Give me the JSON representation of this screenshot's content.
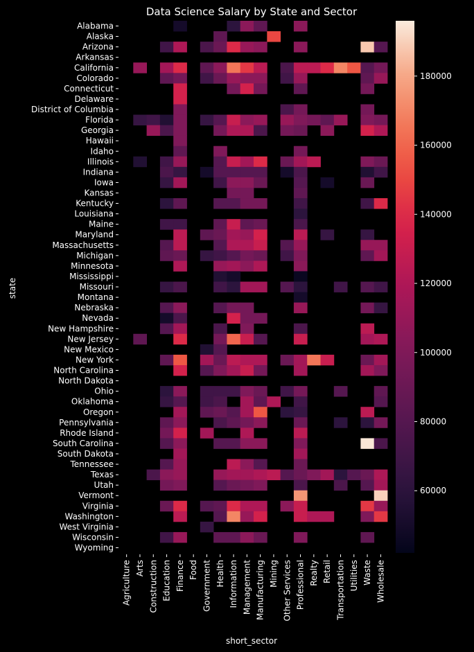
{
  "chart_data": {
    "type": "heatmap",
    "title": "Data Science Salary by State and Sector",
    "xlabel": "short_sector",
    "ylabel": "state",
    "x": [
      "Agriculture",
      "Arts",
      "Construction",
      "Education",
      "Finance",
      "Food",
      "Government",
      "Health",
      "Information",
      "Management",
      "Manufacturing",
      "Mining",
      "Other Services",
      "Professional",
      "Realty",
      "Retail",
      "Transportation",
      "Utilities",
      "Waste",
      "Wholesale"
    ],
    "y": [
      "Alabama",
      "Alaska",
      "Arizona",
      "Arkansas",
      "California",
      "Colorado",
      "Connecticut",
      "Delaware",
      "District of Columbia",
      "Florida",
      "Georgia",
      "Hawaii",
      "Idaho",
      "Illinois",
      "Indiana",
      "Iowa",
      "Kansas",
      "Kentucky",
      "Louisiana",
      "Maine",
      "Maryland",
      "Massachusetts",
      "Michigan",
      "Minnesota",
      "Mississippi",
      "Missouri",
      "Montana",
      "Nebraska",
      "Nevada",
      "New Hampshire",
      "New Jersey",
      "New Mexico",
      "New York",
      "North Carolina",
      "North Dakota",
      "Ohio",
      "Oklahoma",
      "Oregon",
      "Pennsylvania",
      "Rhode Island",
      "South Carolina",
      "South Dakota",
      "Tennessee",
      "Texas",
      "Utah",
      "Vermont",
      "Virginia",
      "Washington",
      "West Virginia",
      "Wisconsin",
      "Wyoming"
    ],
    "values": [
      [
        null,
        null,
        null,
        null,
        50000,
        null,
        null,
        null,
        60000,
        105000,
        85000,
        null,
        null,
        105000,
        null,
        null,
        null,
        null,
        null,
        null
      ],
      [
        null,
        null,
        null,
        null,
        null,
        null,
        null,
        85000,
        null,
        null,
        null,
        150000,
        null,
        null,
        null,
        null,
        null,
        null,
        null,
        null
      ],
      [
        null,
        null,
        null,
        70000,
        120000,
        null,
        75000,
        90000,
        140000,
        110000,
        105000,
        null,
        null,
        105000,
        null,
        null,
        null,
        null,
        188000,
        80000
      ],
      [
        null,
        null,
        null,
        null,
        null,
        null,
        null,
        null,
        null,
        null,
        null,
        null,
        null,
        null,
        null,
        null,
        null,
        null,
        null,
        null
      ],
      [
        null,
        110000,
        null,
        115000,
        140000,
        null,
        85000,
        105000,
        165000,
        145000,
        125000,
        null,
        75000,
        125000,
        125000,
        140000,
        170000,
        155000,
        80000,
        95000
      ],
      [
        null,
        null,
        null,
        85000,
        95000,
        null,
        70000,
        90000,
        110000,
        105000,
        105000,
        null,
        70000,
        110000,
        null,
        null,
        null,
        null,
        85000,
        110000
      ],
      [
        null,
        null,
        null,
        null,
        135000,
        null,
        null,
        null,
        95000,
        135000,
        95000,
        null,
        null,
        85000,
        null,
        null,
        null,
        null,
        95000,
        null
      ],
      [
        null,
        null,
        null,
        null,
        135000,
        null,
        null,
        null,
        null,
        null,
        null,
        null,
        null,
        null,
        null,
        null,
        null,
        null,
        null,
        null
      ],
      [
        null,
        null,
        null,
        null,
        100000,
        null,
        null,
        null,
        null,
        null,
        null,
        null,
        75000,
        95000,
        null,
        null,
        null,
        null,
        95000,
        null
      ],
      [
        null,
        65000,
        70000,
        55000,
        100000,
        null,
        65000,
        80000,
        130000,
        105000,
        110000,
        null,
        110000,
        100000,
        95000,
        85000,
        110000,
        null,
        100000,
        95000
      ],
      [
        null,
        null,
        110000,
        75000,
        100000,
        null,
        null,
        95000,
        120000,
        120000,
        75000,
        null,
        95000,
        90000,
        null,
        105000,
        null,
        null,
        135000,
        120000
      ],
      [
        null,
        null,
        null,
        null,
        100000,
        null,
        null,
        null,
        null,
        null,
        null,
        null,
        null,
        null,
        null,
        null,
        null,
        null,
        null,
        null
      ],
      [
        null,
        null,
        null,
        null,
        85000,
        null,
        null,
        100000,
        null,
        null,
        null,
        null,
        null,
        95000,
        null,
        null,
        null,
        null,
        null,
        null
      ],
      [
        null,
        55000,
        null,
        70000,
        110000,
        null,
        null,
        80000,
        130000,
        115000,
        140000,
        null,
        90000,
        115000,
        125000,
        null,
        null,
        null,
        100000,
        90000
      ],
      [
        null,
        null,
        null,
        75000,
        65000,
        null,
        50000,
        80000,
        80000,
        80000,
        80000,
        null,
        50000,
        75000,
        null,
        null,
        null,
        null,
        55000,
        70000
      ],
      [
        null,
        null,
        null,
        65000,
        115000,
        null,
        null,
        70000,
        105000,
        105000,
        90000,
        null,
        null,
        80000,
        null,
        50000,
        null,
        null,
        90000,
        null
      ],
      [
        null,
        null,
        null,
        null,
        null,
        null,
        null,
        null,
        95000,
        95000,
        null,
        null,
        null,
        85000,
        null,
        null,
        null,
        null,
        null,
        null
      ],
      [
        null,
        null,
        null,
        60000,
        85000,
        null,
        null,
        80000,
        80000,
        95000,
        95000,
        null,
        null,
        70000,
        null,
        null,
        null,
        null,
        70000,
        140000
      ],
      [
        null,
        null,
        null,
        null,
        null,
        null,
        null,
        null,
        null,
        null,
        null,
        null,
        null,
        60000,
        null,
        null,
        null,
        null,
        null,
        null
      ],
      [
        null,
        null,
        null,
        70000,
        70000,
        null,
        null,
        85000,
        130000,
        85000,
        90000,
        null,
        null,
        75000,
        null,
        null,
        null,
        null,
        null,
        null
      ],
      [
        null,
        null,
        null,
        null,
        125000,
        null,
        85000,
        90000,
        115000,
        110000,
        135000,
        null,
        null,
        125000,
        null,
        65000,
        null,
        null,
        65000,
        null
      ],
      [
        null,
        null,
        null,
        80000,
        125000,
        null,
        null,
        80000,
        120000,
        120000,
        130000,
        null,
        80000,
        110000,
        null,
        null,
        null,
        null,
        110000,
        110000
      ],
      [
        null,
        null,
        null,
        85000,
        90000,
        null,
        65000,
        70000,
        80000,
        95000,
        90000,
        null,
        70000,
        100000,
        null,
        null,
        null,
        null,
        85000,
        115000
      ],
      [
        null,
        null,
        null,
        null,
        120000,
        null,
        null,
        110000,
        115000,
        105000,
        120000,
        null,
        null,
        105000,
        null,
        null,
        null,
        null,
        null,
        null
      ],
      [
        null,
        null,
        null,
        null,
        null,
        null,
        null,
        55000,
        50000,
        null,
        null,
        null,
        null,
        45000,
        null,
        null,
        null,
        null,
        null,
        null
      ],
      [
        null,
        null,
        null,
        65000,
        75000,
        null,
        null,
        70000,
        60000,
        115000,
        115000,
        null,
        80000,
        60000,
        null,
        null,
        70000,
        null,
        80000,
        70000
      ],
      [
        null,
        null,
        null,
        null,
        null,
        null,
        null,
        null,
        null,
        null,
        null,
        null,
        null,
        50000,
        null,
        null,
        null,
        null,
        null,
        null
      ],
      [
        null,
        null,
        null,
        80000,
        105000,
        null,
        null,
        80000,
        95000,
        95000,
        null,
        null,
        null,
        110000,
        null,
        null,
        null,
        null,
        95000,
        65000
      ],
      [
        null,
        null,
        null,
        50000,
        75000,
        null,
        null,
        null,
        135000,
        95000,
        95000,
        null,
        null,
        null,
        null,
        null,
        null,
        null,
        null,
        null
      ],
      [
        null,
        null,
        null,
        80000,
        115000,
        null,
        null,
        75000,
        null,
        100000,
        null,
        null,
        null,
        75000,
        null,
        null,
        null,
        null,
        125000,
        null
      ],
      [
        null,
        85000,
        null,
        null,
        140000,
        null,
        null,
        95000,
        160000,
        130000,
        80000,
        null,
        null,
        130000,
        null,
        null,
        null,
        null,
        115000,
        120000
      ],
      [
        null,
        null,
        null,
        null,
        null,
        null,
        55000,
        80000,
        null,
        null,
        null,
        null,
        null,
        null,
        null,
        null,
        null,
        null,
        null,
        null
      ],
      [
        null,
        null,
        null,
        85000,
        155000,
        null,
        115000,
        90000,
        125000,
        120000,
        120000,
        null,
        90000,
        115000,
        165000,
        130000,
        null,
        null,
        90000,
        115000
      ],
      [
        null,
        null,
        null,
        null,
        135000,
        null,
        80000,
        100000,
        115000,
        130000,
        95000,
        null,
        null,
        115000,
        null,
        null,
        null,
        null,
        115000,
        100000
      ],
      [
        null,
        null,
        null,
        null,
        null,
        null,
        null,
        null,
        null,
        null,
        null,
        null,
        null,
        null,
        null,
        null,
        null,
        null,
        null,
        null
      ],
      [
        null,
        null,
        null,
        60000,
        105000,
        null,
        70000,
        70000,
        70000,
        100000,
        90000,
        null,
        70000,
        95000,
        null,
        null,
        80000,
        null,
        null,
        85000
      ],
      [
        null,
        null,
        null,
        65000,
        80000,
        null,
        70000,
        75000,
        null,
        115000,
        85000,
        120000,
        null,
        70000,
        null,
        null,
        null,
        null,
        null,
        80000
      ],
      [
        null,
        null,
        null,
        null,
        115000,
        null,
        85000,
        90000,
        80000,
        115000,
        155000,
        null,
        60000,
        65000,
        null,
        null,
        null,
        null,
        125000,
        null
      ],
      [
        null,
        null,
        null,
        85000,
        105000,
        null,
        null,
        75000,
        85000,
        95000,
        105000,
        null,
        null,
        90000,
        null,
        null,
        60000,
        null,
        60000,
        95000
      ],
      [
        null,
        null,
        null,
        95000,
        135000,
        null,
        115000,
        null,
        null,
        120000,
        null,
        null,
        null,
        125000,
        null,
        null,
        null,
        null,
        null,
        null
      ],
      [
        null,
        null,
        null,
        80000,
        105000,
        null,
        null,
        80000,
        80000,
        105000,
        105000,
        null,
        null,
        100000,
        null,
        null,
        null,
        null,
        195000,
        75000
      ],
      [
        null,
        null,
        null,
        null,
        115000,
        null,
        null,
        null,
        null,
        null,
        null,
        null,
        null,
        115000,
        null,
        null,
        null,
        null,
        null,
        null
      ],
      [
        null,
        null,
        null,
        80000,
        110000,
        null,
        null,
        null,
        125000,
        105000,
        80000,
        null,
        null,
        90000,
        null,
        null,
        null,
        null,
        null,
        null
      ],
      [
        null,
        null,
        75000,
        105000,
        110000,
        null,
        null,
        110000,
        115000,
        115000,
        120000,
        125000,
        80000,
        90000,
        100000,
        115000,
        60000,
        80000,
        90000,
        120000
      ],
      [
        null,
        null,
        null,
        95000,
        100000,
        null,
        null,
        80000,
        90000,
        95000,
        100000,
        null,
        null,
        75000,
        null,
        null,
        75000,
        null,
        80000,
        115000
      ],
      [
        null,
        null,
        null,
        null,
        null,
        null,
        null,
        null,
        null,
        null,
        null,
        null,
        null,
        175000,
        null,
        null,
        null,
        null,
        null,
        190000
      ],
      [
        null,
        null,
        null,
        90000,
        140000,
        null,
        80000,
        85000,
        140000,
        120000,
        120000,
        null,
        105000,
        130000,
        null,
        null,
        null,
        null,
        145000,
        110000
      ],
      [
        null,
        null,
        null,
        null,
        125000,
        null,
        null,
        80000,
        170000,
        110000,
        135000,
        null,
        null,
        130000,
        120000,
        120000,
        null,
        null,
        100000,
        145000
      ],
      [
        null,
        null,
        null,
        null,
        null,
        null,
        65000,
        null,
        null,
        null,
        null,
        null,
        null,
        null,
        null,
        null,
        null,
        null,
        null,
        null
      ],
      [
        null,
        null,
        null,
        70000,
        110000,
        null,
        null,
        85000,
        85000,
        105000,
        90000,
        null,
        null,
        100000,
        null,
        null,
        null,
        null,
        85000,
        null
      ],
      [
        null,
        null,
        null,
        null,
        null,
        null,
        null,
        null,
        null,
        null,
        null,
        null,
        null,
        null,
        null,
        null,
        null,
        null,
        null,
        null
      ]
    ],
    "colorbar": {
      "min": 42000,
      "max": 196000,
      "ticks": [
        60000,
        80000,
        100000,
        120000,
        140000,
        160000,
        180000
      ]
    },
    "colormap": "rocket",
    "background": "#000000"
  }
}
